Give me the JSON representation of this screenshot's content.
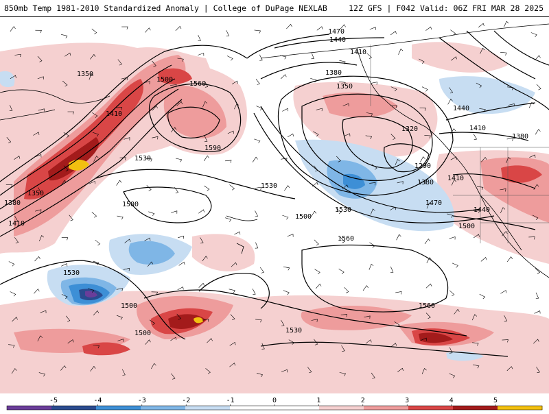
{
  "header": {
    "title_left": "850mb Temp 1981-2010 Standardized Anomaly | College of DuPage NEXLAB",
    "title_right": "12Z GFS | F042 Valid: 06Z FRI MAR 28 2025"
  },
  "colors": {
    "neg5": "#6a3d9a",
    "neg4": "#2a4b8f",
    "neg3": "#3d8fd6",
    "neg2": "#7fb6e6",
    "neg1": "#c7ddf2",
    "zero": "#ffffff",
    "pos1": "#f5d0d0",
    "pos2": "#ee9c9c",
    "pos3": "#d94646",
    "pos4": "#a31b1b",
    "pos5": "#f2c010"
  },
  "contours": {
    "labels": [
      "1470",
      "1440",
      "1410",
      "1380",
      "1350",
      "1320",
      "1290",
      "1350",
      "1410",
      "1380",
      "1350",
      "1410",
      "1560",
      "1590",
      "1530",
      "1500",
      "1530",
      "1500",
      "1530",
      "1500",
      "1500",
      "1560",
      "1470",
      "1380",
      "1410",
      "1440",
      "1500",
      "1560",
      "1530",
      "1530",
      "1500",
      "1440",
      "1410",
      "1380"
    ]
  },
  "colorbar": {
    "ticks": [
      "-5",
      "-4",
      "-3",
      "-2",
      "-1",
      "0",
      "1",
      "2",
      "3",
      "4",
      "5"
    ]
  }
}
